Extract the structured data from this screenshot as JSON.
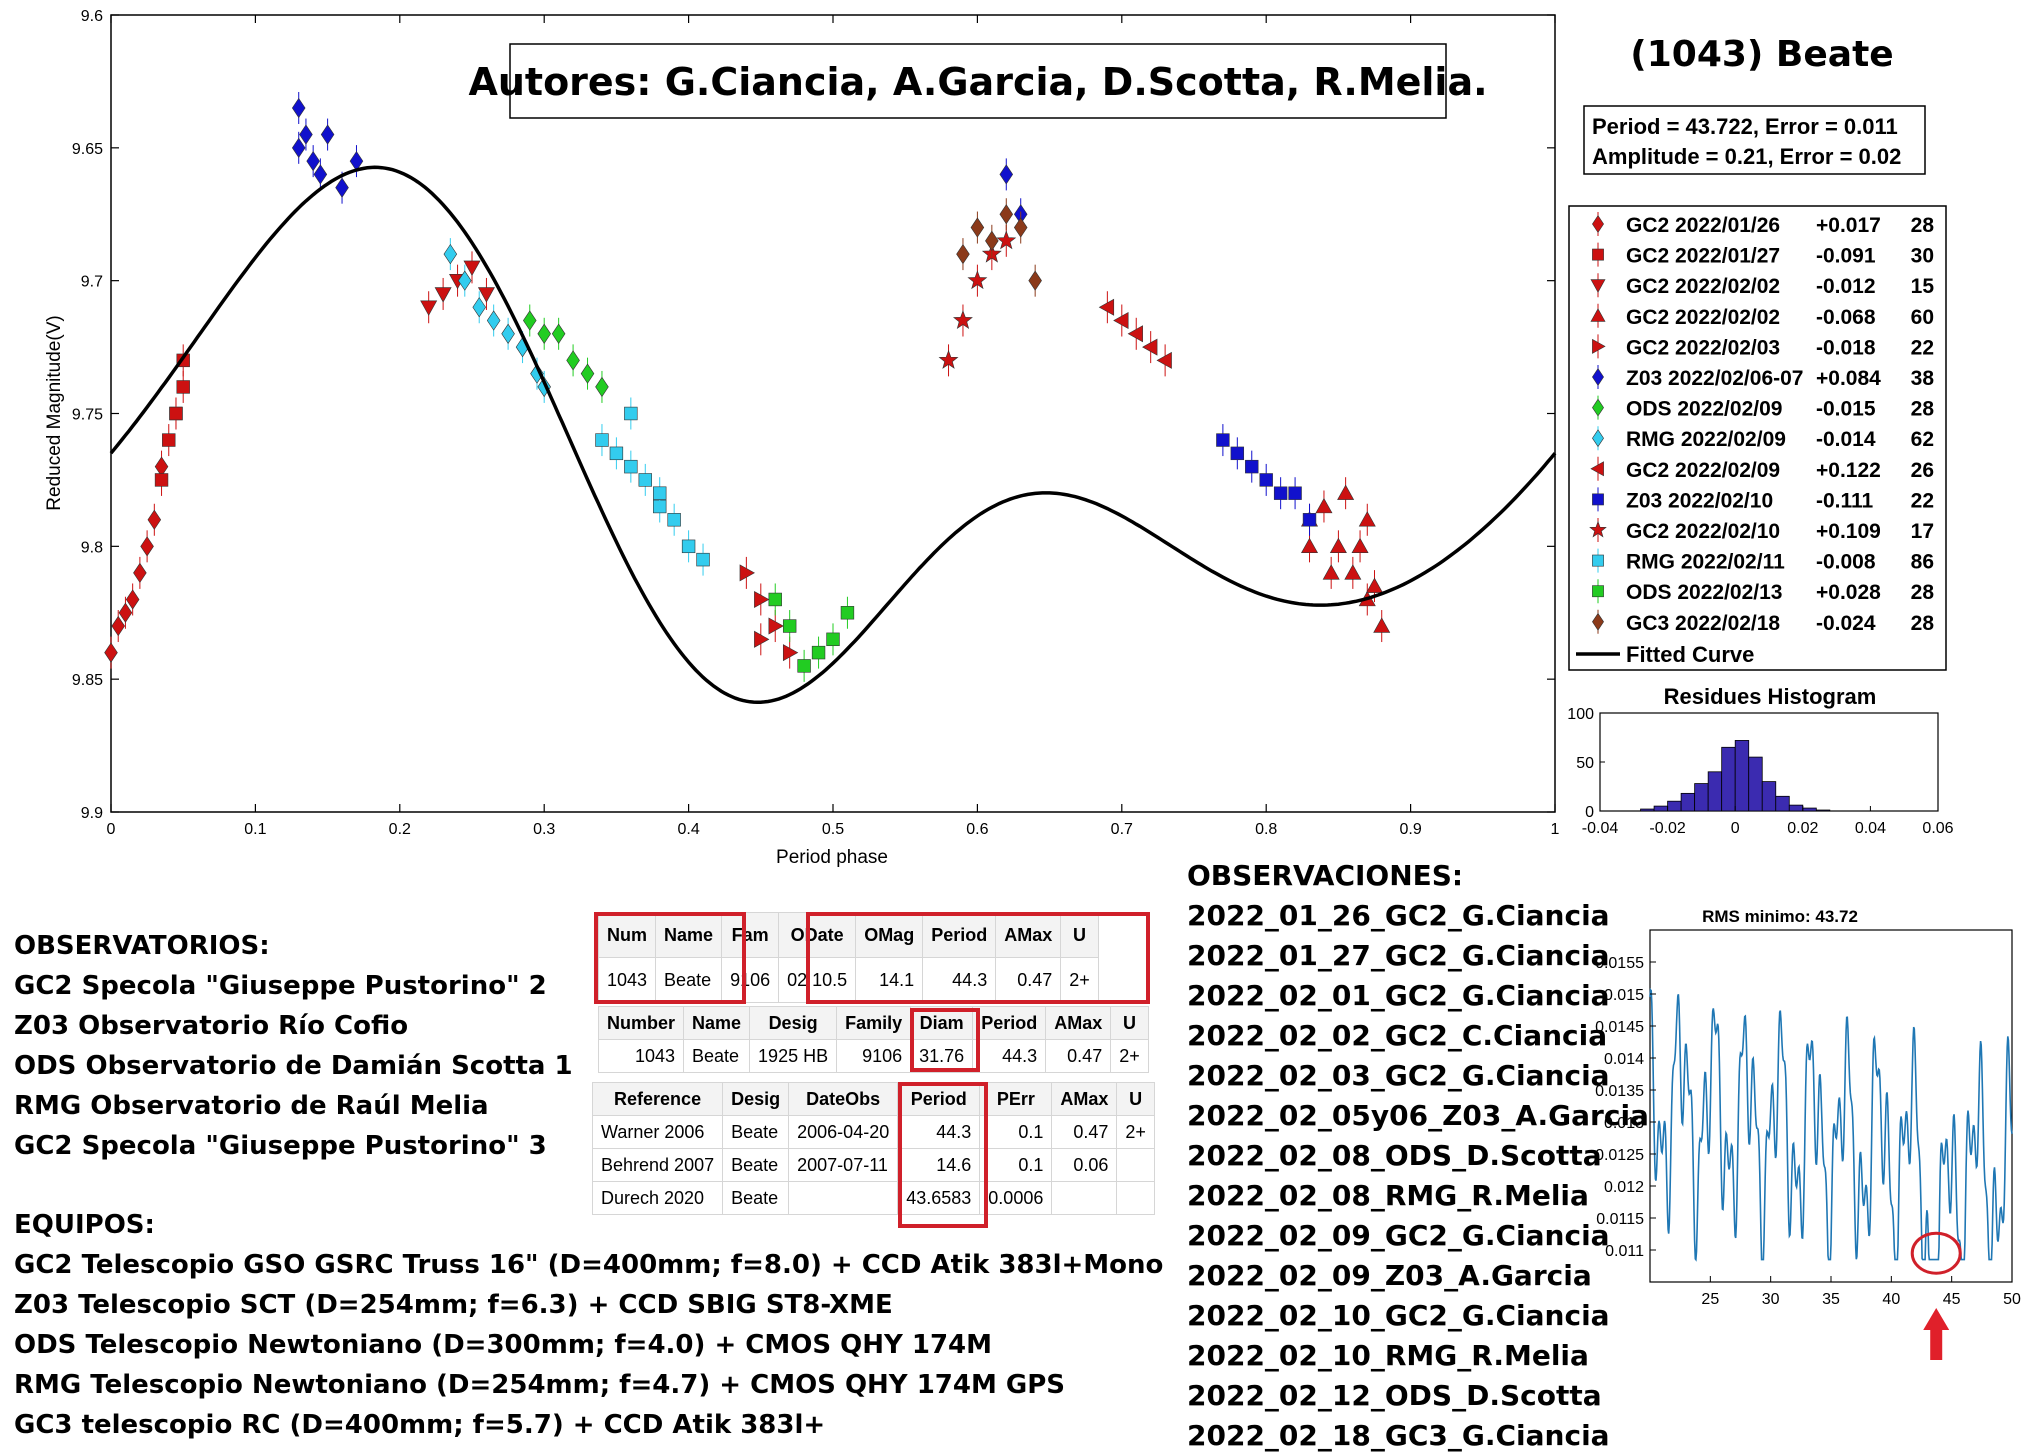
{
  "chart_data": [
    {
      "type": "scatter",
      "title": "(1043) Beate",
      "annotation": "Autores: G.Ciancia, A.Garcia, D.Scotta, R.Melia.",
      "xlabel": "Period phase",
      "ylabel": "Reduced Magnitude(V)",
      "xlim": [
        0,
        1
      ],
      "ylim": [
        9.6,
        9.9
      ],
      "y_reversed": true,
      "x_ticks": [
        "0",
        "0.1",
        "0.2",
        "0.3",
        "0.4",
        "0.5",
        "0.6",
        "0.7",
        "0.8",
        "0.9",
        "1"
      ],
      "y_ticks": [
        "9.6",
        "9.65",
        "9.7",
        "9.75",
        "9.8",
        "9.85",
        "9.9"
      ],
      "fit_box": [
        "Period =  43.722, Error = 0.011",
        "Amplitude = 0.21, Error = 0.02"
      ],
      "series": [
        {
          "name": "GC2 2022/01/26",
          "offset": "+0.017",
          "n": "28",
          "color": "#cc1111",
          "marker": "diamond",
          "x": [
            0.0,
            0.005,
            0.01,
            0.015,
            0.02,
            0.025,
            0.03,
            0.035
          ],
          "y": [
            9.84,
            9.83,
            9.825,
            9.82,
            9.81,
            9.8,
            9.79,
            9.77
          ]
        },
        {
          "name": "GC2 2022/01/27",
          "offset": "-0.091",
          "n": "30",
          "color": "#cc1111",
          "marker": "square",
          "x": [
            0.035,
            0.04,
            0.045,
            0.05,
            0.05,
            0.045
          ],
          "y": [
            9.775,
            9.76,
            9.75,
            9.74,
            9.73,
            9.75
          ]
        },
        {
          "name": "GC2 2022/02/02",
          "offset": "-0.012",
          "n": "15",
          "color": "#cc1111",
          "marker": "triangle-down",
          "x": [
            0.22,
            0.23,
            0.24,
            0.25,
            0.26
          ],
          "y": [
            9.71,
            9.705,
            9.7,
            9.695,
            9.705
          ]
        },
        {
          "name": "GC2 2022/02/02",
          "offset": "-0.068",
          "n": "60",
          "color": "#cc1111",
          "marker": "triangle-up",
          "x": [
            0.83,
            0.84,
            0.85,
            0.86,
            0.865,
            0.87,
            0.875,
            0.88,
            0.83,
            0.845,
            0.855,
            0.87
          ],
          "y": [
            9.79,
            9.785,
            9.8,
            9.81,
            9.8,
            9.82,
            9.815,
            9.83,
            9.8,
            9.81,
            9.78,
            9.79
          ]
        },
        {
          "name": "GC2 2022/02/03",
          "offset": "-0.018",
          "n": "22",
          "color": "#cc1111",
          "marker": "triangle-right",
          "x": [
            0.44,
            0.45,
            0.46,
            0.47,
            0.45
          ],
          "y": [
            9.81,
            9.82,
            9.83,
            9.84,
            9.835
          ]
        },
        {
          "name": "Z03 2022/02/06-07",
          "offset": "+0.084",
          "n": "38",
          "color": "#1111cc",
          "marker": "diamond",
          "x": [
            0.13,
            0.135,
            0.14,
            0.145,
            0.15,
            0.16,
            0.17,
            0.13,
            0.62,
            0.63
          ],
          "y": [
            9.635,
            9.645,
            9.655,
            9.66,
            9.645,
            9.665,
            9.655,
            9.65,
            9.66,
            9.675
          ]
        },
        {
          "name": "ODS 2022/02/09",
          "offset": "-0.015",
          "n": "28",
          "color": "#22cc22",
          "marker": "diamond",
          "x": [
            0.29,
            0.3,
            0.31,
            0.32,
            0.33,
            0.34
          ],
          "y": [
            9.715,
            9.72,
            9.72,
            9.73,
            9.735,
            9.74
          ]
        },
        {
          "name": "RMG 2022/02/09",
          "offset": "-0.014",
          "n": "62",
          "color": "#33ccee",
          "marker": "diamond",
          "x": [
            0.235,
            0.245,
            0.255,
            0.265,
            0.275,
            0.285,
            0.295,
            0.3
          ],
          "y": [
            9.69,
            9.7,
            9.71,
            9.715,
            9.72,
            9.725,
            9.735,
            9.74
          ]
        },
        {
          "name": "GC2 2022/02/09",
          "offset": "+0.122",
          "n": "26",
          "color": "#cc1111",
          "marker": "triangle-left",
          "x": [
            0.69,
            0.7,
            0.71,
            0.72,
            0.73
          ],
          "y": [
            9.71,
            9.715,
            9.72,
            9.725,
            9.73
          ]
        },
        {
          "name": "Z03 2022/02/10",
          "offset": "-0.111",
          "n": "22",
          "color": "#1111cc",
          "marker": "square",
          "x": [
            0.77,
            0.78,
            0.79,
            0.8,
            0.81,
            0.82,
            0.83
          ],
          "y": [
            9.76,
            9.765,
            9.77,
            9.775,
            9.78,
            9.78,
            9.79
          ]
        },
        {
          "name": "GC2 2022/02/10",
          "offset": "+0.109",
          "n": "17",
          "color": "#cc1111",
          "marker": "star",
          "x": [
            0.58,
            0.59,
            0.6,
            0.61,
            0.62
          ],
          "y": [
            9.73,
            9.715,
            9.7,
            9.69,
            9.685
          ]
        },
        {
          "name": "RMG 2022/02/11",
          "offset": "-0.008",
          "n": "86",
          "color": "#33ccee",
          "marker": "square",
          "x": [
            0.34,
            0.35,
            0.36,
            0.37,
            0.38,
            0.39,
            0.4,
            0.41,
            0.36,
            0.38
          ],
          "y": [
            9.76,
            9.765,
            9.77,
            9.775,
            9.785,
            9.79,
            9.8,
            9.805,
            9.75,
            9.78
          ]
        },
        {
          "name": "ODS 2022/02/13",
          "offset": "+0.028",
          "n": "28",
          "color": "#22cc22",
          "marker": "square",
          "x": [
            0.46,
            0.47,
            0.48,
            0.49,
            0.5,
            0.51
          ],
          "y": [
            9.82,
            9.83,
            9.845,
            9.84,
            9.835,
            9.825
          ]
        },
        {
          "name": "GC3 2022/02/18",
          "offset": "-0.024",
          "n": "28",
          "color": "#8b3a1a",
          "marker": "diamond",
          "x": [
            0.59,
            0.6,
            0.61,
            0.62,
            0.63,
            0.64
          ],
          "y": [
            9.69,
            9.68,
            9.685,
            9.675,
            9.68,
            9.7
          ]
        }
      ],
      "fitted_curve": {
        "name": "Fitted Curve",
        "color": "#000000"
      }
    },
    {
      "type": "bar",
      "title": "Residues Histogram",
      "xlim": [
        -0.04,
        0.06
      ],
      "ylim": [
        0,
        100
      ],
      "x_ticks": [
        "-0.04",
        "-0.02",
        "0",
        "0.02",
        "0.04",
        "0.06"
      ],
      "y_ticks": [
        "100",
        "50",
        "0"
      ],
      "color": "#3b2bb0",
      "bin_width": 0.004,
      "bin_centers": [
        -0.026,
        -0.022,
        -0.018,
        -0.014,
        -0.01,
        -0.006,
        -0.002,
        0.002,
        0.006,
        0.01,
        0.014,
        0.018,
        0.022,
        0.026
      ],
      "values": [
        2,
        5,
        10,
        18,
        28,
        40,
        65,
        72,
        55,
        30,
        15,
        6,
        3,
        1
      ]
    },
    {
      "type": "line",
      "title": "RMS minimo: 43.72",
      "xlim": [
        20,
        50
      ],
      "ylim": [
        0.0105,
        0.016
      ],
      "x_ticks": [
        "25",
        "30",
        "35",
        "40",
        "45",
        "50"
      ],
      "y_ticks": [
        "0.0155",
        "0.015",
        "0.0145",
        "0.014",
        "0.0135",
        "0.013",
        "0.0125",
        "0.012",
        "0.0115",
        "0.011"
      ],
      "color": "#1f77b4",
      "minimum_x": 43.72
    }
  ],
  "observatorios": {
    "title": "OBSERVATORIOS:",
    "items": [
      "GC2 Specola \"Giuseppe Pustorino\" 2",
      "Z03 Observatorio Río Cofio",
      "ODS Observatorio de Damián Scotta 1",
      "RMG Observatorio de Raúl Melia",
      "GC2 Specola \"Giuseppe Pustorino\" 3"
    ]
  },
  "equipos": {
    "title": "EQUIPOS:",
    "items": [
      "GC2 Telescopio GSO GSRC Truss 16\" (D=400mm; f=8.0) + CCD Atik 383l+Mono",
      "Z03 Telescopio SCT (D=254mm; f=6.3) + CCD SBIG ST8-XME",
      "ODS Telescopio Newtoniano (D=300mm; f=4.0) + CMOS QHY 174M",
      "RMG Telescopio Newtoniano (D=254mm; f=4.7) + CMOS QHY 174M GPS",
      "GC3 telescopio RC (D=400mm; f=5.7) + CCD Atik 383l+"
    ]
  },
  "observaciones": {
    "title": "OBSERVACIONES:",
    "items": [
      "2022_01_26_GC2_G.Ciancia",
      "2022_01_27_GC2_G.Ciancia",
      "2022_02_01_GC2_G.Ciancia",
      "2022_02_02_GC2_C.Ciancia",
      "2022_02_03_GC2_G.Ciancia",
      "2022_02_05y06_Z03_A.Garcia",
      "2022_02_08_ODS_D.Scotta",
      "2022_02_08_RMG_R.Melia",
      "2022_02_09_GC2_G.Ciancia",
      "2022_02_09_Z03_A.Garcia",
      "2022_02_10_GC2_G.Ciancia",
      "2022_02_10_RMG_R.Melia",
      "2022_02_12_ODS_D.Scotta",
      "2022_02_18_GC3_G.Ciancia"
    ]
  },
  "lcdb_table": {
    "headers": [
      "Num",
      "Name",
      "Fam",
      "ODate",
      "OMag",
      "Period",
      "AMax",
      "U"
    ],
    "row": [
      "1043",
      "Beate",
      "9106",
      "02 10.5",
      "14.1",
      "44.3",
      "0.47",
      "2+"
    ]
  },
  "diam_table": {
    "headers": [
      "Number",
      "Name",
      "Desig",
      "Family",
      "Diam",
      "Period",
      "AMax",
      "U"
    ],
    "row": [
      "1043",
      "Beate",
      "1925 HB",
      "9106",
      "31.76",
      "44.3",
      "0.47",
      "2+"
    ]
  },
  "ref_table": {
    "headers": [
      "Reference",
      "Desig",
      "DateObs",
      "Period",
      "PErr",
      "AMax",
      "U"
    ],
    "rows": [
      [
        "Warner 2006",
        "Beate",
        "2006-04-20",
        "44.3",
        "0.1",
        "0.47",
        "2+"
      ],
      [
        "Behrend 2007",
        "Beate",
        "2007-07-11",
        "14.6",
        "0.1",
        "0.06",
        ""
      ],
      [
        "Durech 2020",
        "Beate",
        "",
        "43.6583",
        "0.0006",
        "",
        ""
      ]
    ]
  }
}
